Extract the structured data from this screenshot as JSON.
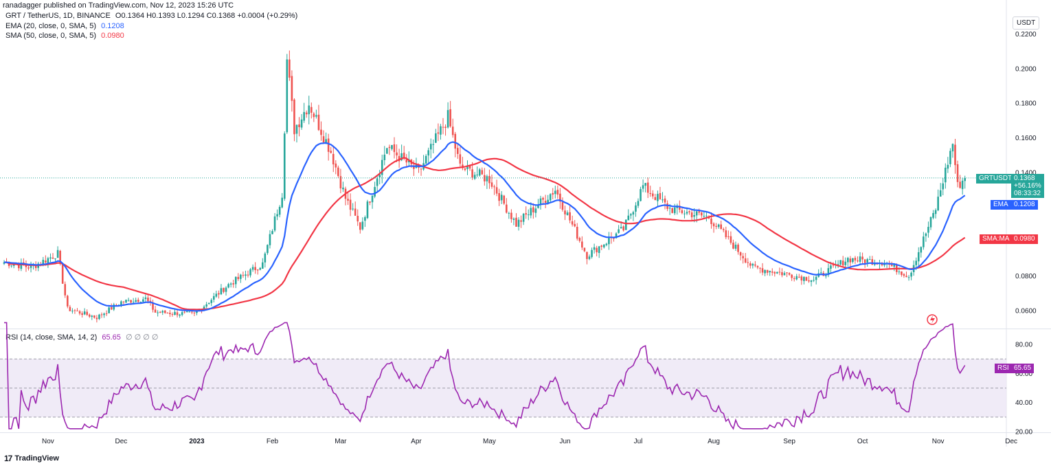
{
  "header": {
    "published": "ranadagger published on TradingView.com, Nov 12, 2023 15:26 UTC"
  },
  "legend": {
    "symbol": "GRT / TetherUS, 1D, BINANCE",
    "ohlc": "O0.1364 H0.1393 L0.1294 C0.1368 +0.0004 (+0.29%)",
    "ema_label": "EMA (20, close, 0, SMA, 5)",
    "ema_value": "0.1208",
    "sma_label": "SMA (50, close, 0, SMA, 5)",
    "sma_value": "0.0980",
    "rsi_label": "RSI (14, close, SMA, 14, 2)",
    "rsi_value": "65.65",
    "rsi_extra": "∅ ∅ ∅ ∅"
  },
  "axis": {
    "currency": "USDT",
    "price_ticks": [
      "0.2200",
      "0.2000",
      "0.1800",
      "0.1600",
      "0.1400",
      "0.1200",
      "0.1000",
      "0.0800",
      "0.0600"
    ],
    "rsi_ticks": [
      "80.00",
      "60.00",
      "40.00",
      "20.00"
    ],
    "time_labels": [
      "Nov",
      "Dec",
      "2023",
      "Feb",
      "Mar",
      "Apr",
      "May",
      "Jun",
      "Jul",
      "Aug",
      "Sep",
      "Oct",
      "Nov",
      "Dec"
    ]
  },
  "tags": {
    "symbol_tag": "GRTUSDT",
    "price": "0.1368",
    "change": "+56.16%",
    "countdown": "08:33:32",
    "ema_tag": "EMA",
    "ema_value": "0.1208",
    "sma_tag": "SMA:MA",
    "sma_value": "0.0980",
    "rsi_tag": "RSI",
    "rsi_value": "65.65"
  },
  "footer": {
    "brand": "TradingView"
  },
  "colors": {
    "up": "#26a69a",
    "down": "#ef5350",
    "ema": "#2962ff",
    "sma": "#f23645",
    "rsi": "#9c27b0",
    "rsi_band": "#ede7f6"
  },
  "chart_data": {
    "type": "candlestick",
    "symbol": "GRT / TetherUS",
    "interval": "1D",
    "ylim": [
      0.05,
      0.235
    ],
    "rsi_ylim": [
      20,
      90
    ],
    "rsi_levels": [
      70,
      50,
      30
    ],
    "current_price": 0.1368,
    "close_anchors": [
      [
        "2022-10-14",
        0.088
      ],
      [
        "2022-10-25",
        0.085
      ],
      [
        "2022-11-05",
        0.093
      ],
      [
        "2022-11-09",
        0.061
      ],
      [
        "2022-11-21",
        0.056
      ],
      [
        "2022-12-01",
        0.065
      ],
      [
        "2022-12-11",
        0.067
      ],
      [
        "2022-12-15",
        0.059
      ],
      [
        "2022-12-31",
        0.058
      ],
      [
        "2023-01-14",
        0.075
      ],
      [
        "2023-01-28",
        0.087
      ],
      [
        "2023-02-05",
        0.128
      ],
      [
        "2023-02-07",
        0.205
      ],
      [
        "2023-02-10",
        0.165
      ],
      [
        "2023-02-16",
        0.18
      ],
      [
        "2023-02-25",
        0.152
      ],
      [
        "2023-03-03",
        0.125
      ],
      [
        "2023-03-09",
        0.108
      ],
      [
        "2023-03-20",
        0.155
      ],
      [
        "2023-04-02",
        0.14
      ],
      [
        "2023-04-14",
        0.172
      ],
      [
        "2023-04-19",
        0.143
      ],
      [
        "2023-05-01",
        0.136
      ],
      [
        "2023-05-12",
        0.11
      ],
      [
        "2023-05-28",
        0.13
      ],
      [
        "2023-06-10",
        0.092
      ],
      [
        "2023-06-25",
        0.107
      ],
      [
        "2023-07-03",
        0.132
      ],
      [
        "2023-07-14",
        0.119
      ],
      [
        "2023-07-30",
        0.114
      ],
      [
        "2023-08-17",
        0.085
      ],
      [
        "2023-09-11",
        0.078
      ],
      [
        "2023-09-25",
        0.09
      ],
      [
        "2023-10-10",
        0.088
      ],
      [
        "2023-10-20",
        0.08
      ],
      [
        "2023-10-31",
        0.119
      ],
      [
        "2023-11-07",
        0.157
      ],
      [
        "2023-11-09",
        0.132
      ],
      [
        "2023-11-12",
        0.1368
      ]
    ],
    "ema20_final": 0.1208,
    "sma50_final": 0.098,
    "rsi_final": 65.65
  }
}
